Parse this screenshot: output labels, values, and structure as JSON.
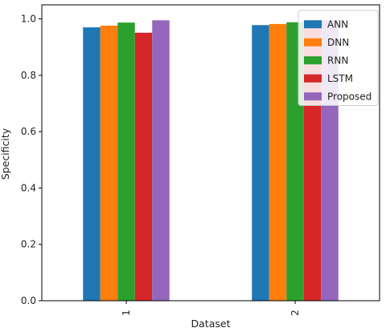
{
  "chart_data": {
    "type": "bar",
    "xlabel": "Dataset",
    "ylabel": "Specificity",
    "categories": [
      "1",
      "2"
    ],
    "ylim": [
      0,
      1.05
    ],
    "yticks": [
      "0.0",
      "0.2",
      "0.4",
      "0.6",
      "0.8",
      "1.0"
    ],
    "grid": false,
    "legend_position": "top-right",
    "series": [
      {
        "name": "ANN",
        "color": "#1f77b4",
        "values": [
          0.97,
          0.978
        ]
      },
      {
        "name": "DNN",
        "color": "#ff7f0e",
        "values": [
          0.976,
          0.982
        ]
      },
      {
        "name": "RNN",
        "color": "#2ca02c",
        "values": [
          0.987,
          0.988
        ]
      },
      {
        "name": "LSTM",
        "color": "#d62728",
        "values": [
          0.951,
          0.975
        ]
      },
      {
        "name": "Proposed",
        "color": "#9467bd",
        "values": [
          0.995,
          0.996
        ]
      }
    ]
  }
}
